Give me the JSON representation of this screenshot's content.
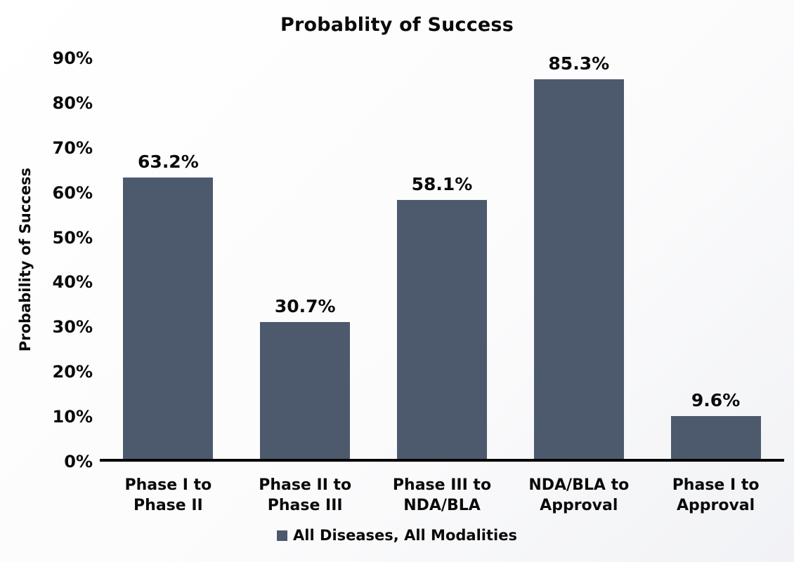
{
  "chart_data": {
    "type": "bar",
    "title": "Probablity of Success",
    "ylabel": "Probability of Success",
    "xlabel": "",
    "categories": [
      "Phase I to\nPhase II",
      "Phase II to\nPhase III",
      "Phase III to\nNDA/BLA",
      "NDA/BLA to\nApproval",
      "Phase I to\nApproval"
    ],
    "values": [
      63.2,
      30.7,
      58.1,
      85.3,
      9.6
    ],
    "value_labels": [
      "63.2%",
      "30.7%",
      "58.1%",
      "85.3%",
      "9.6%"
    ],
    "ylim": [
      0,
      90
    ],
    "yticks": [
      90,
      80,
      70,
      60,
      50,
      40,
      30,
      20,
      10,
      0
    ],
    "ytick_suffix": "%",
    "grid": false,
    "legend_position": "bottom",
    "series_name": "All Diseases, All Modalities",
    "bar_color": "#4d5a6d",
    "axis_color": "#000000",
    "text_color": "#0a0a0a"
  }
}
